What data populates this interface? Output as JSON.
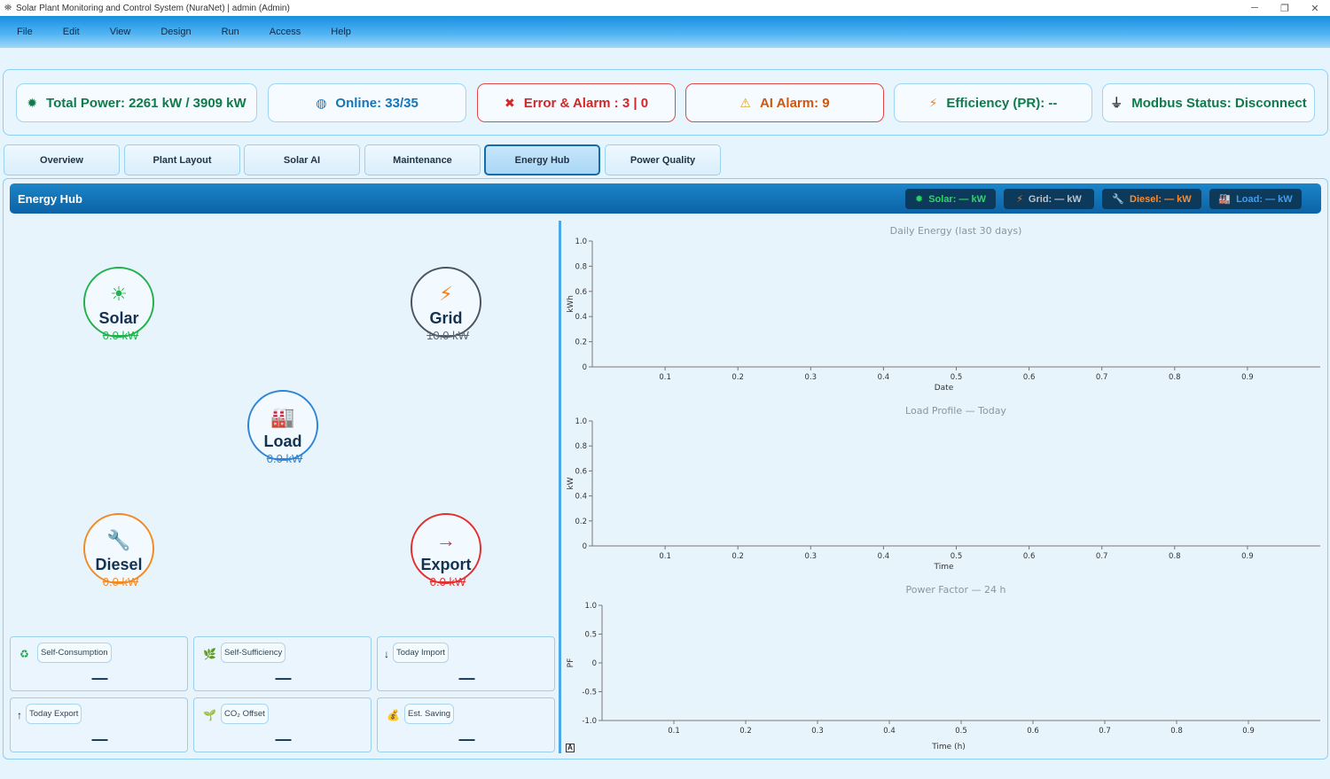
{
  "window": {
    "title": "Solar Plant Monitoring and Control System (NuraNet) | admin (Admin)",
    "app_icon": "⛯",
    "minimize": "─",
    "maximize": "❐",
    "close": "✕"
  },
  "menu": [
    "File",
    "Edit",
    "View",
    "Design",
    "Run",
    "Access",
    "Help"
  ],
  "status": {
    "total_power": "Total Power: 2261 kW / 3909 kW",
    "online": "Online: 33/35",
    "error_alarm": "Error & Alarm : 3 | 0",
    "ai_alarm": "AI Alarm: 9",
    "efficiency": "Efficiency (PR): --",
    "modbus": "Modbus Status: Disconnect",
    "icons": {
      "total_power": "✹",
      "online": "◍",
      "error_alarm": "✖",
      "ai_alarm": "⚠",
      "efficiency": "⚡",
      "modbus": "⏚"
    }
  },
  "tabs": [
    "Overview",
    "Plant Layout",
    "Solar AI",
    "Maintenance",
    "Energy Hub",
    "Power Quality"
  ],
  "active_tab": "Energy Hub",
  "hub": {
    "title": "Energy Hub",
    "chips": {
      "solar": "Solar: — kW",
      "grid": "Grid: — kW",
      "diesel": "Diesel: — kW",
      "load": "Load: — kW"
    },
    "chip_icons": {
      "solar": "✹",
      "grid": "⚡",
      "diesel": "🔧",
      "load": "🏭"
    }
  },
  "nodes": {
    "solar": {
      "label": "Solar",
      "value": "0.0 kW",
      "icon": "☀",
      "color": "#22b14c"
    },
    "grid": {
      "label": "Grid",
      "value": "10.0 kW",
      "icon": "⚡",
      "color": "#4a5560"
    },
    "load": {
      "label": "Load",
      "value": "0.0 kW",
      "icon": "🏭",
      "color": "#2f86d6"
    },
    "diesel": {
      "label": "Diesel",
      "value": "0.0 kW",
      "icon": "🔧",
      "color": "#f08a24"
    },
    "export": {
      "label": "Export",
      "value": "0.0 kW",
      "icon": "→",
      "color": "#e03030"
    }
  },
  "metrics": [
    {
      "label": "Self-Consumption",
      "value": "—",
      "icon": "♻"
    },
    {
      "label": "Self-Sufficiency",
      "value": "—",
      "icon": "🌿"
    },
    {
      "label": "Today Import",
      "value": "—",
      "icon": "↓"
    },
    {
      "label": "Today Export",
      "value": "—",
      "icon": "↑"
    },
    {
      "label": "CO₂ Offset",
      "value": "—",
      "icon": "🌱"
    },
    {
      "label": "Est. Saving",
      "value": "—",
      "icon": "💰"
    }
  ],
  "chart_data": [
    {
      "type": "line",
      "title": "Daily Energy (last 30 days)",
      "xlabel": "Date",
      "ylabel": "kWh",
      "xlim": [
        0,
        1
      ],
      "ylim": [
        0,
        1
      ],
      "x_ticks": [
        0.1,
        0.2,
        0.3,
        0.4,
        0.5,
        0.6,
        0.7,
        0.8,
        0.9
      ],
      "y_ticks": [
        0,
        0.2,
        0.4,
        0.6,
        0.8,
        1.0
      ],
      "series": [],
      "grid": false
    },
    {
      "type": "line",
      "title": "Load Profile — Today",
      "xlabel": "Time",
      "ylabel": "kW",
      "xlim": [
        0,
        1
      ],
      "ylim": [
        0,
        1
      ],
      "x_ticks": [
        0.1,
        0.2,
        0.3,
        0.4,
        0.5,
        0.6,
        0.7,
        0.8,
        0.9
      ],
      "y_ticks": [
        0,
        0.2,
        0.4,
        0.6,
        0.8,
        1.0
      ],
      "series": [],
      "grid": false
    },
    {
      "type": "line",
      "title": "Power Factor — 24 h",
      "xlabel": "Time (h)",
      "ylabel": "PF",
      "xlim": [
        0,
        1
      ],
      "ylim": [
        -1,
        1
      ],
      "x_ticks": [
        0.1,
        0.2,
        0.3,
        0.4,
        0.5,
        0.6,
        0.7,
        0.8,
        0.9
      ],
      "y_ticks": [
        -1.0,
        -0.5,
        0,
        0.5,
        1.0
      ],
      "series": [],
      "grid": false
    }
  ],
  "chart_corner_badge": "A"
}
